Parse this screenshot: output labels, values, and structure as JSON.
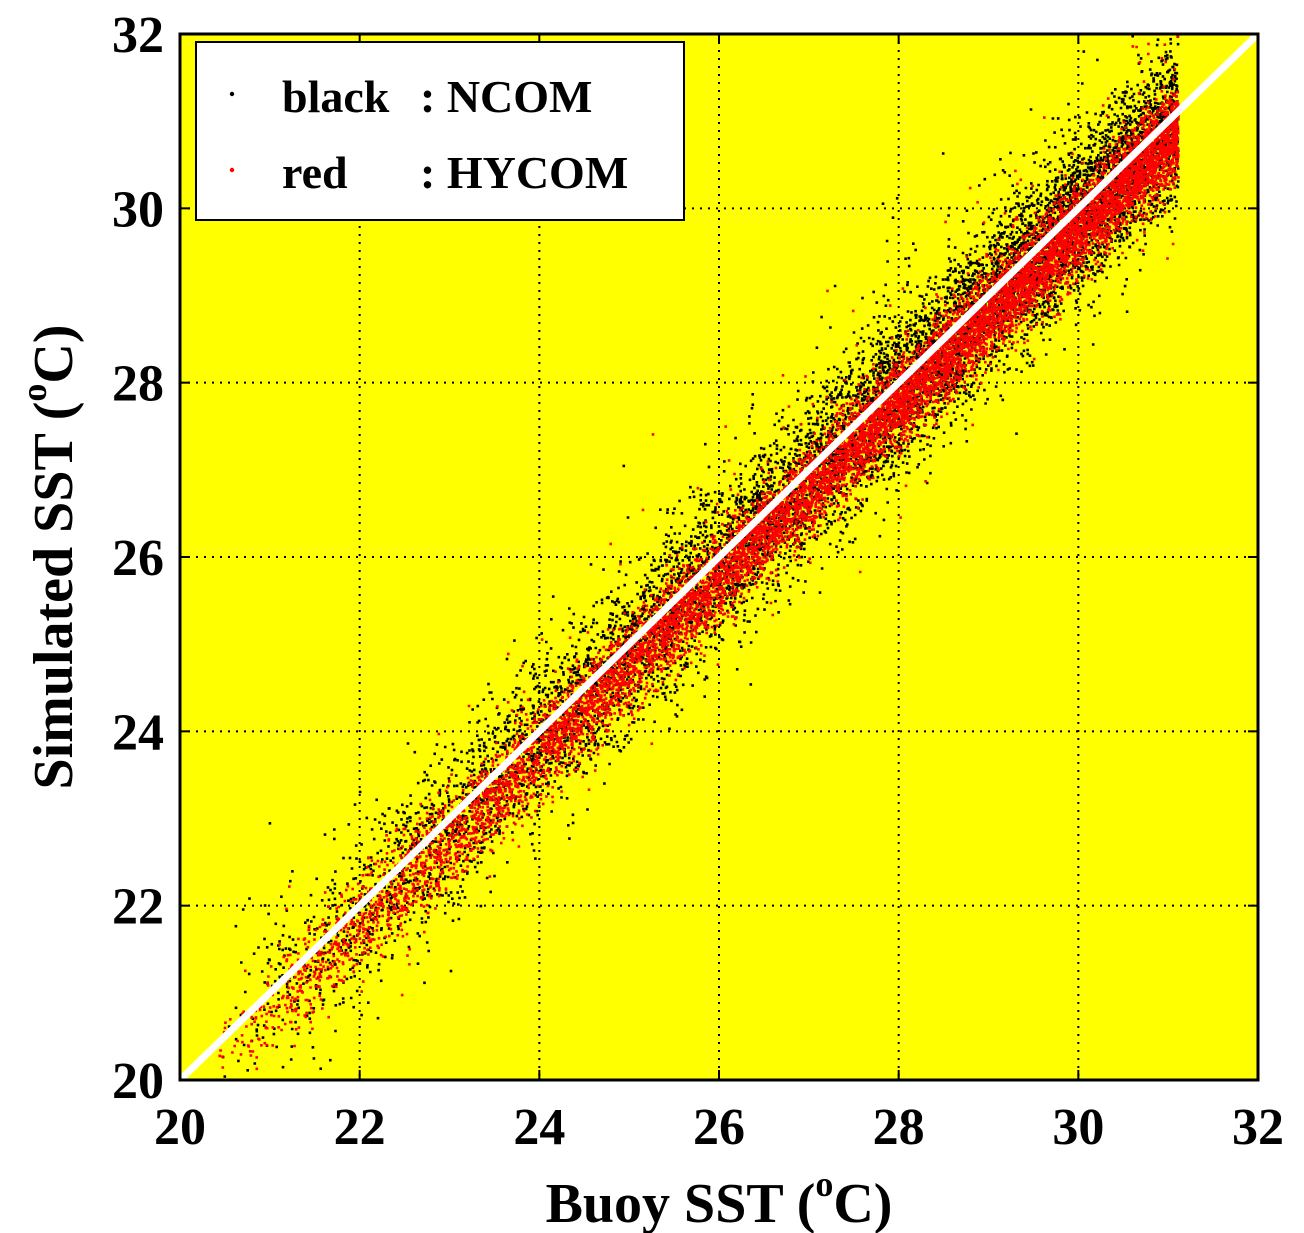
{
  "chart_data": {
    "type": "scatter",
    "xlabel": {
      "text": "Buoy SST (",
      "sup": "o",
      "unit": "C)"
    },
    "ylabel": {
      "text": "Simulated SST (",
      "sup": "o",
      "unit": "C)"
    },
    "xlim": [
      20,
      32
    ],
    "ylim": [
      20,
      32
    ],
    "xticks": [
      "20",
      "22",
      "24",
      "26",
      "28",
      "30",
      "32"
    ],
    "yticks": [
      "20",
      "22",
      "24",
      "26",
      "28",
      "30",
      "32"
    ],
    "grid": true,
    "legend_position": "top-left",
    "background_color": "#ffff00",
    "reference_line": {
      "from": [
        20,
        20
      ],
      "to": [
        32,
        32
      ],
      "color": "#ffffff"
    },
    "legend": [
      {
        "label": "black",
        "sep": ": NCOM",
        "color": "#000000"
      },
      {
        "label": "red",
        "sep": ": HYCOM",
        "color": "#ff0000"
      }
    ],
    "series": [
      {
        "name": "NCOM",
        "color": "#000000",
        "count": 9000,
        "bias": -0.05,
        "spread": 0.45
      },
      {
        "name": "HYCOM",
        "color": "#ff0000",
        "count": 11000,
        "bias": -0.2,
        "spread": 0.25
      }
    ]
  }
}
